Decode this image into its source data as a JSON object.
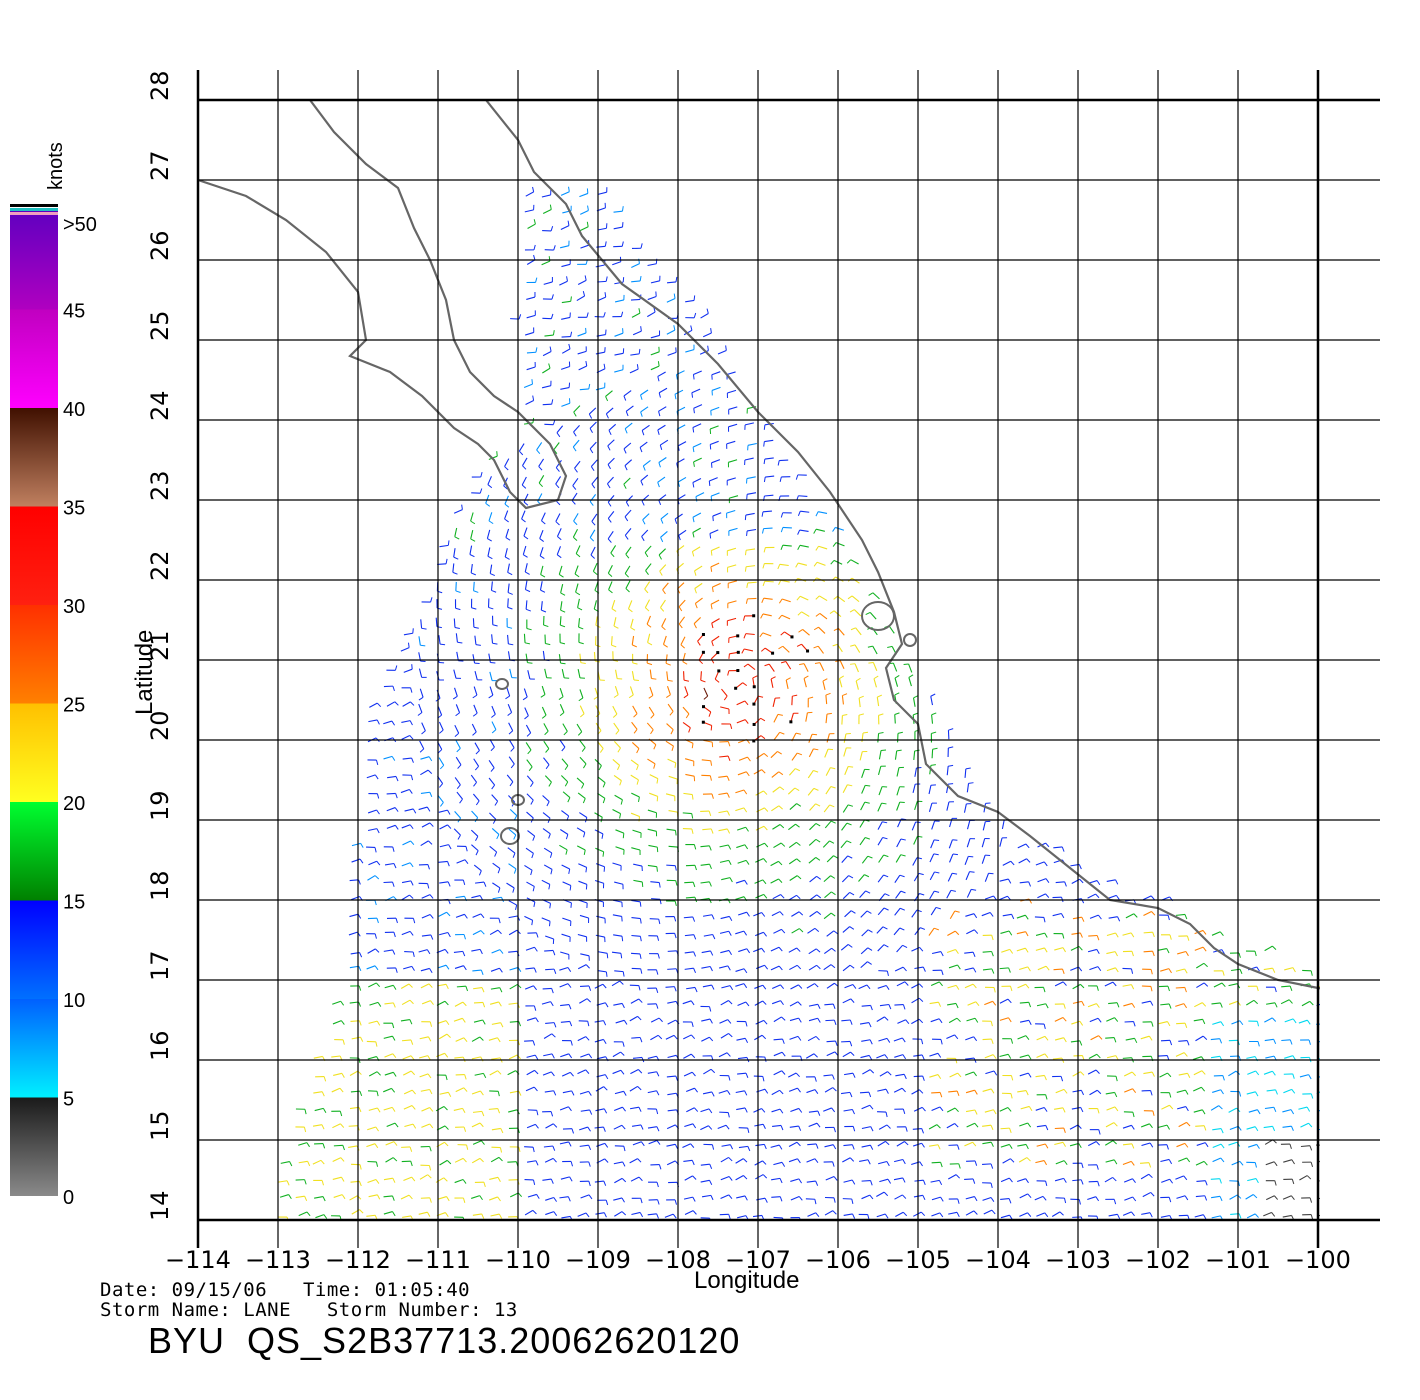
{
  "map": {
    "lon_ticks": [
      -114,
      -113,
      -112,
      -111,
      -110,
      -109,
      -108,
      -107,
      -106,
      -105,
      -104,
      -103,
      -102,
      -101,
      -100
    ],
    "lat_ticks": [
      14,
      15,
      16,
      17,
      18,
      19,
      20,
      21,
      22,
      23,
      24,
      25,
      26,
      27,
      28
    ],
    "lon_tick_labels": [
      "−114",
      "−113",
      "−112",
      "−111",
      "−110",
      "−109",
      "−108",
      "−107",
      "−106",
      "−105",
      "−104",
      "−103",
      "−102",
      "−101",
      "−100"
    ],
    "lat_tick_labels": [
      "14",
      "15",
      "16",
      "17",
      "18",
      "19",
      "20",
      "21",
      "22",
      "23",
      "24",
      "25",
      "26",
      "27",
      "28"
    ],
    "xlabel": "Longitude",
    "ylabel": "Latitude",
    "lon_range": [
      -114,
      -99.6
    ],
    "lat_range": [
      14,
      28
    ],
    "land_color": "#ffffff",
    "coast_color": "#666666",
    "grid_color": "#000000"
  },
  "colorbar": {
    "unit_label": "knots",
    "tick_labels": [
      "0",
      "5",
      "10",
      "15",
      "20",
      "25",
      "30",
      "35",
      "40",
      "45",
      ">50"
    ],
    "tick_values": [
      0,
      5,
      10,
      15,
      20,
      25,
      30,
      35,
      40,
      45,
      50
    ],
    "bands": [
      {
        "from": 0,
        "to": 5,
        "colors": [
          "#8a8a8a",
          "#1a1a1a"
        ]
      },
      {
        "from": 5,
        "to": 10,
        "colors": [
          "#00f0ff",
          "#0060ff"
        ]
      },
      {
        "from": 10,
        "to": 15,
        "colors": [
          "#0070ff",
          "#0000ff"
        ]
      },
      {
        "from": 15,
        "to": 20,
        "colors": [
          "#008000",
          "#00ff30"
        ]
      },
      {
        "from": 20,
        "to": 25,
        "colors": [
          "#ffff20",
          "#ffc000"
        ]
      },
      {
        "from": 25,
        "to": 30,
        "colors": [
          "#ff8000",
          "#ff3000"
        ]
      },
      {
        "from": 30,
        "to": 35,
        "colors": [
          "#ff2010",
          "#ff0000"
        ]
      },
      {
        "from": 35,
        "to": 40,
        "colors": [
          "#c08060",
          "#401000"
        ]
      },
      {
        "from": 40,
        "to": 45,
        "colors": [
          "#ff00ff",
          "#c000c0"
        ]
      },
      {
        "from": 45,
        "to": 50,
        "colors": [
          "#b000c0",
          "#6000c0"
        ]
      }
    ],
    "top_stripe_colors": [
      "#f0a0c0",
      "#20c0c0",
      "#000000"
    ]
  },
  "metadata": {
    "date_line": "Date: 09/15/06   Time: 01:05:40",
    "storm_line": "Storm Name: LANE   Storm Number: 13",
    "product_title": "BYU  QS_S2B37713.20062620120"
  }
}
